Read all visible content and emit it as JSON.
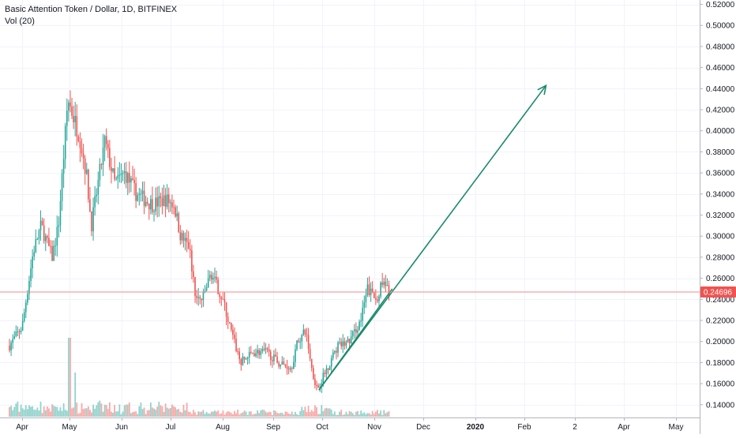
{
  "header": {
    "title": "Basic Attention Token / Dollar, 1D, BITFINEX",
    "indicator": "Vol (20)"
  },
  "colors": {
    "up": "#26a69a",
    "down": "#ef5350",
    "up_volume": "#92d2cc",
    "down_volume": "#f7a9a7",
    "arrow": "#1b8a6b",
    "price_line": "#f08a89",
    "price_badge": "#ef5350",
    "axis_text": "#131722",
    "grid": "#f0f3fa"
  },
  "price_axis": {
    "labels": [
      "0.52000",
      "0.50000",
      "0.48000",
      "0.46000",
      "0.44000",
      "0.42000",
      "0.40000",
      "0.38000",
      "0.36000",
      "0.34000",
      "0.32000",
      "0.30000",
      "0.28000",
      "0.26000",
      "0.24000",
      "0.22000",
      "0.20000",
      "0.18000",
      "0.16000",
      "0.14000"
    ],
    "last_price": "0.24696"
  },
  "time_axis": {
    "labels": [
      "Apr",
      "May",
      "Jun",
      "Jul",
      "Aug",
      "Sep",
      "Oct",
      "Nov",
      "Dec",
      "2020",
      "Feb",
      "2",
      "Apr",
      "May"
    ],
    "bold": [
      "2020"
    ]
  },
  "chart_data": {
    "type": "candlestick",
    "symbol": "Basic Attention Token / Dollar",
    "interval": "1D",
    "exchange": "BITFINEX",
    "x_unit": "month",
    "ylim": [
      0.125,
      0.52
    ],
    "grid": true,
    "last_price": 0.24696,
    "anchors": [
      {
        "x": "Mar 24",
        "y": 0.196
      },
      {
        "x": "Apr 1",
        "y": 0.214
      },
      {
        "x": "Apr 8",
        "y": 0.285
      },
      {
        "x": "Apr 13",
        "y": 0.31
      },
      {
        "x": "Apr 20",
        "y": 0.28
      },
      {
        "x": "Apr 24",
        "y": 0.31
      },
      {
        "x": "Apr 27",
        "y": 0.37
      },
      {
        "x": "Apr 30",
        "y": 0.43
      },
      {
        "x": "May 3",
        "y": 0.415
      },
      {
        "x": "May 7",
        "y": 0.395
      },
      {
        "x": "May 11",
        "y": 0.36
      },
      {
        "x": "May 14",
        "y": 0.31
      },
      {
        "x": "May 18",
        "y": 0.35
      },
      {
        "x": "May 22",
        "y": 0.39
      },
      {
        "x": "May 28",
        "y": 0.35
      },
      {
        "x": "Jun 3",
        "y": 0.36
      },
      {
        "x": "Jun 10",
        "y": 0.34
      },
      {
        "x": "Jun 20",
        "y": 0.33
      },
      {
        "x": "Jun 28",
        "y": 0.335
      },
      {
        "x": "Jul 3",
        "y": 0.33
      },
      {
        "x": "Jul 7",
        "y": 0.3
      },
      {
        "x": "Jul 12",
        "y": 0.29
      },
      {
        "x": "Jul 16",
        "y": 0.24
      },
      {
        "x": "Jul 20",
        "y": 0.24
      },
      {
        "x": "Jul 25",
        "y": 0.265
      },
      {
        "x": "Aug 1",
        "y": 0.24
      },
      {
        "x": "Aug 6",
        "y": 0.21
      },
      {
        "x": "Aug 12",
        "y": 0.18
      },
      {
        "x": "Aug 20",
        "y": 0.19
      },
      {
        "x": "Aug 28",
        "y": 0.19
      },
      {
        "x": "Sep 4",
        "y": 0.18
      },
      {
        "x": "Sep 12",
        "y": 0.175
      },
      {
        "x": "Sep 16",
        "y": 0.2
      },
      {
        "x": "Sep 21",
        "y": 0.21
      },
      {
        "x": "Sep 25",
        "y": 0.17
      },
      {
        "x": "Sep 28",
        "y": 0.155
      },
      {
        "x": "Oct 4",
        "y": 0.175
      },
      {
        "x": "Oct 10",
        "y": 0.195
      },
      {
        "x": "Oct 17",
        "y": 0.2
      },
      {
        "x": "Oct 24",
        "y": 0.22
      },
      {
        "x": "Oct 28",
        "y": 0.25
      },
      {
        "x": "Nov 2",
        "y": 0.24
      },
      {
        "x": "Nov 6",
        "y": 0.255
      },
      {
        "x": "Nov 10",
        "y": 0.247
      }
    ],
    "volume_spikes": [
      {
        "x": "May 1",
        "level": "max"
      },
      {
        "x": "May 4",
        "level": "high"
      }
    ],
    "drawings": [
      {
        "type": "trendline",
        "from": {
          "x": "Sep 29",
          "y": 0.154
        },
        "to": {
          "x": "Nov 12",
          "y": 0.25
        }
      },
      {
        "type": "arrow",
        "from": {
          "x": "Sep 29",
          "y": 0.154
        },
        "to": {
          "x": "Feb 13",
          "y": 0.443
        }
      }
    ]
  }
}
